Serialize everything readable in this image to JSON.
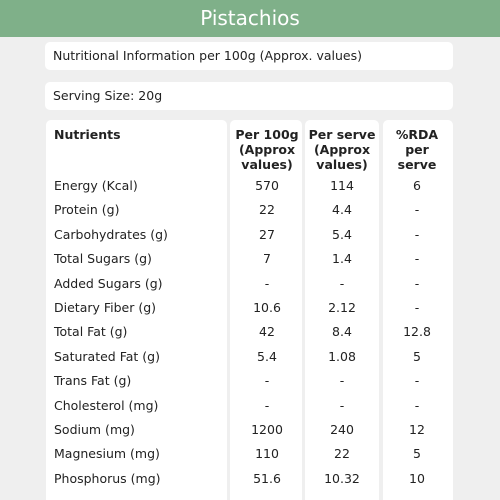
{
  "header": {
    "title": "Pistachios"
  },
  "info": "Nutritional Information per 100g (Approx. values)",
  "serving": "Serving Size:  20g",
  "table": {
    "headers": [
      [
        "Nutrients"
      ],
      [
        "Per 100g",
        "(Approx",
        "values)"
      ],
      [
        "Per serve",
        "(Approx",
        "values)"
      ],
      [
        "%RDA",
        "per",
        "serve"
      ]
    ],
    "rows": [
      [
        "Energy (Kcal)",
        "570",
        "114",
        "6"
      ],
      [
        "Protein (g)",
        "22",
        "4.4",
        "-"
      ],
      [
        "Carbohydrates (g)",
        "27",
        "5.4",
        "-"
      ],
      [
        "Total Sugars (g)",
        "7",
        "1.4",
        "-"
      ],
      [
        "Added Sugars (g)",
        "-",
        "-",
        "-"
      ],
      [
        "Dietary Fiber (g)",
        "10.6",
        "2.12",
        "-"
      ],
      [
        "Total Fat (g)",
        "42",
        "8.4",
        "12.8"
      ],
      [
        "Saturated Fat (g)",
        "5.4",
        "1.08",
        "5"
      ],
      [
        "Trans Fat (g)",
        "-",
        "-",
        "-"
      ],
      [
        "Cholesterol (mg)",
        "-",
        "-",
        "-"
      ],
      [
        "Sodium (mg)",
        "1200",
        "240",
        "12"
      ],
      [
        "Magnesium (mg)",
        "110",
        "22",
        "5"
      ],
      [
        "Phosphorus (mg)",
        "51.6",
        "10.32",
        "10"
      ]
    ]
  }
}
